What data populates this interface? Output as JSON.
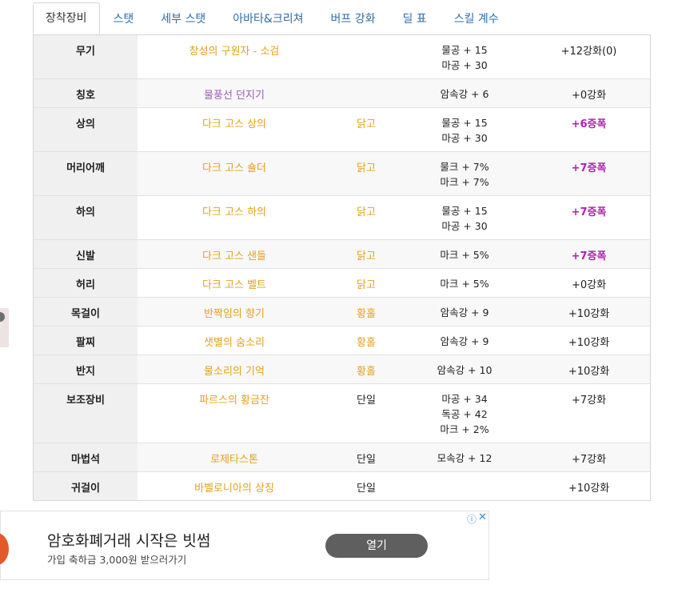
{
  "tabs": [
    {
      "label": "장착장비",
      "active": true
    },
    {
      "label": "스탯"
    },
    {
      "label": "세부 스탯"
    },
    {
      "label": "아바타&크리쳐"
    },
    {
      "label": "버프 강화"
    },
    {
      "label": "딜 표"
    },
    {
      "label": "스킬 계수"
    }
  ],
  "equipment": [
    {
      "slot": "무기",
      "item": "창성의 구원자 - 소검",
      "grade": "",
      "options": [
        "물공 + 15",
        "마공 + 30"
      ],
      "enhance": "+12강화(0)"
    },
    {
      "slot": "칭호",
      "item": "물풍선 던지기",
      "grade": "",
      "options": [
        "암속강 + 6"
      ],
      "enhance": "+0강화"
    },
    {
      "slot": "상의",
      "item": "다크 고스 상의",
      "grade": "닭고",
      "options": [
        "물공 + 15",
        "마공 + 30"
      ],
      "enhance": "+6증폭"
    },
    {
      "slot": "머리어깨",
      "item": "다크 고스 숄더",
      "grade": "닭고",
      "options": [
        "물크 + 7%",
        "마크 + 7%"
      ],
      "enhance": "+7증폭"
    },
    {
      "slot": "하의",
      "item": "다크 고스 하의",
      "grade": "닭고",
      "options": [
        "물공 + 15",
        "마공 + 30"
      ],
      "enhance": "+7증폭"
    },
    {
      "slot": "신발",
      "item": "다크 고스 샌들",
      "grade": "닭고",
      "options": [
        "마크 + 5%"
      ],
      "enhance": "+7증폭"
    },
    {
      "slot": "허리",
      "item": "다크 고스 벨트",
      "grade": "닭고",
      "options": [
        "마크 + 5%"
      ],
      "enhance": "+0강화"
    },
    {
      "slot": "목걸이",
      "item": "반짝임의 향기",
      "grade": "황홀",
      "options": [
        "암속강 + 9"
      ],
      "enhance": "+10강화"
    },
    {
      "slot": "팔찌",
      "item": "샛별의 숨소리",
      "grade": "황홀",
      "options": [
        "암속강 + 9"
      ],
      "enhance": "+10강화"
    },
    {
      "slot": "반지",
      "item": "물소리의 기억",
      "grade": "황홀",
      "options": [
        "암속강 + 10"
      ],
      "enhance": "+10강화"
    },
    {
      "slot": "보조장비",
      "item": "파르스의 황금잔",
      "grade": "단일",
      "options": [
        "마공 + 34",
        "독공 + 42",
        "마크 + 2%"
      ],
      "enhance": "+7강화"
    },
    {
      "slot": "마법석",
      "item": "로제타스톤",
      "grade": "단일",
      "options": [
        "모속강 + 12"
      ],
      "enhance": "+7강화"
    },
    {
      "slot": "귀걸이",
      "item": "바벨로니아의 상징",
      "grade": "단일",
      "options": [],
      "enhance": "+10강화"
    }
  ],
  "colors": {
    "item_orange": "#e3a01b",
    "item_purple": "#9b59b6",
    "amplify_magenta": "#b01fb0",
    "tab_link": "#2b6ea8"
  },
  "ad": {
    "headline": "암호화폐거래 시작은 빗썸",
    "subtext": "가입 축하금 3,000원 받으러가기",
    "button_label": "열기",
    "info_icon": "ⓘ",
    "close_icon": "✕"
  }
}
